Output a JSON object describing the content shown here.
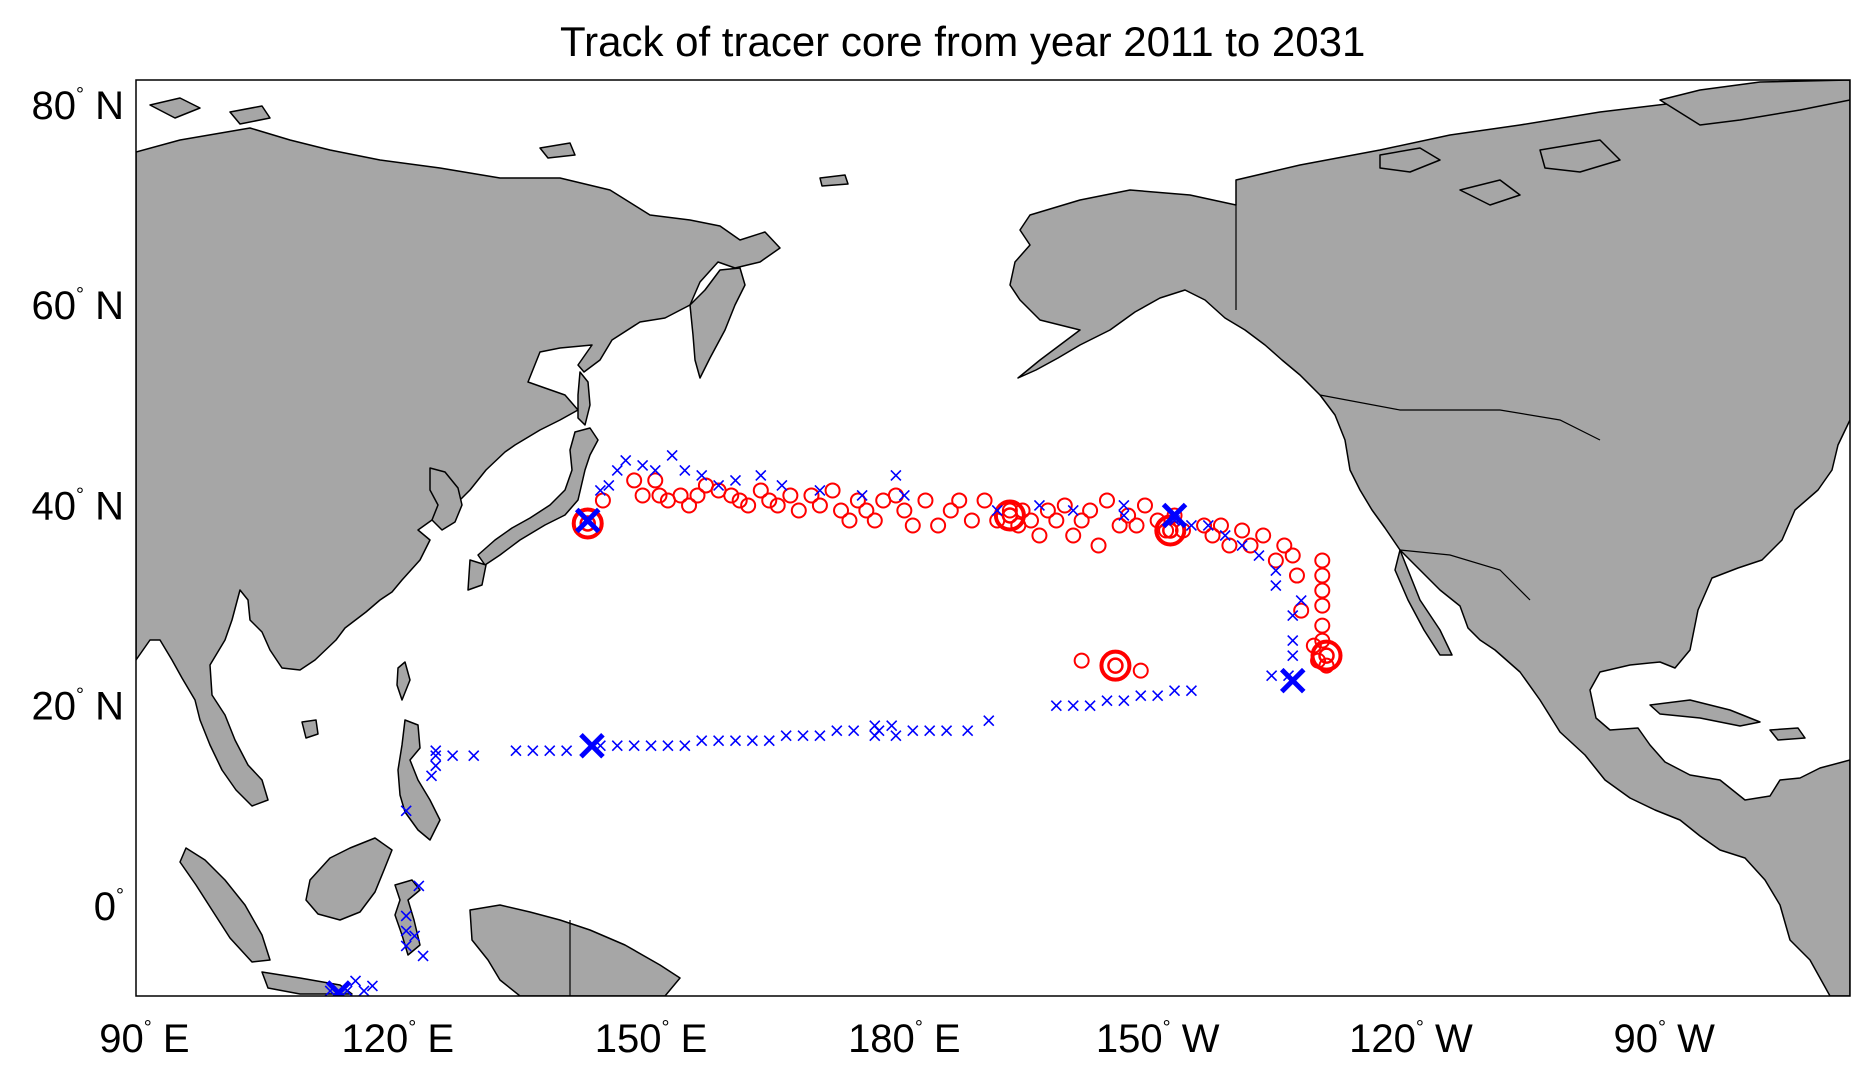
{
  "title": "Track of tracer core from  year 2011 to 2031",
  "colors": {
    "land": "#a6a6a6",
    "coast": "#000000",
    "ocean": "#ffffff",
    "circle_marker": "#ff0000",
    "cross_marker": "#0000ff"
  },
  "axes": {
    "lon_ticks": [
      {
        "lon": 90,
        "value": "90",
        "hemi": "E"
      },
      {
        "lon": 120,
        "value": "120",
        "hemi": "E"
      },
      {
        "lon": 150,
        "value": "150",
        "hemi": "E"
      },
      {
        "lon": 180,
        "value": "180",
        "hemi": "E"
      },
      {
        "lon": 210,
        "value": "150",
        "hemi": "W"
      },
      {
        "lon": 240,
        "value": "120",
        "hemi": "W"
      },
      {
        "lon": 270,
        "value": "90",
        "hemi": "W"
      }
    ],
    "lat_ticks": [
      {
        "lat": 80,
        "value": "80",
        "hemi": "N"
      },
      {
        "lat": 60,
        "value": "60",
        "hemi": "N"
      },
      {
        "lat": 40,
        "value": "40",
        "hemi": "N"
      },
      {
        "lat": 20,
        "value": "20",
        "hemi": "N"
      },
      {
        "lat": 0,
        "value": "0",
        "hemi": ""
      }
    ],
    "lon_range": [
      89,
      292
    ],
    "lat_range": [
      -9,
      82.5
    ]
  },
  "chart_data": {
    "type": "scatter",
    "title": "Track of tracer core from  year 2011 to 2031",
    "xlabel": "",
    "ylabel": "",
    "xlim": [
      89,
      292
    ],
    "ylim": [
      -9,
      82.5
    ],
    "series": [
      {
        "marker": "o",
        "color": "#ff0000",
        "points": [
          [
            144.3,
            40.5
          ],
          [
            148,
            42.5
          ],
          [
            149,
            41
          ],
          [
            150.5,
            42.5
          ],
          [
            151,
            41
          ],
          [
            152,
            40.5
          ],
          [
            153.5,
            41
          ],
          [
            154.5,
            40
          ],
          [
            155.5,
            41
          ],
          [
            156.5,
            42
          ],
          [
            158,
            41.5
          ],
          [
            159.5,
            41
          ],
          [
            160.5,
            40.5
          ],
          [
            161.5,
            40
          ],
          [
            163,
            41.5
          ],
          [
            164,
            40.5
          ],
          [
            165,
            40
          ],
          [
            166.5,
            41
          ],
          [
            167.5,
            39.5
          ],
          [
            169,
            41
          ],
          [
            170,
            40
          ],
          [
            171.5,
            41.5
          ],
          [
            172.5,
            39.5
          ],
          [
            173.5,
            38.5
          ],
          [
            174.5,
            40.5
          ],
          [
            175.5,
            39.5
          ],
          [
            176.5,
            38.5
          ],
          [
            177.5,
            40.5
          ],
          [
            179,
            41
          ],
          [
            180,
            39.5
          ],
          [
            181,
            38
          ],
          [
            182.5,
            40.5
          ],
          [
            184,
            38
          ],
          [
            185.5,
            39.5
          ],
          [
            186.5,
            40.5
          ],
          [
            188,
            38.5
          ],
          [
            189.5,
            40.5
          ],
          [
            191,
            38.5
          ],
          [
            192.5,
            39.5
          ],
          [
            193.5,
            38
          ],
          [
            194,
            39.5
          ],
          [
            195,
            38.5
          ],
          [
            196,
            37
          ],
          [
            197,
            39.5
          ],
          [
            198,
            38.5
          ],
          [
            199,
            40
          ],
          [
            200,
            37
          ],
          [
            201,
            38.5
          ],
          [
            202,
            39.5
          ],
          [
            203,
            36
          ],
          [
            204,
            40.5
          ],
          [
            205.5,
            38
          ],
          [
            206.5,
            39
          ],
          [
            207.5,
            38
          ],
          [
            208.5,
            40
          ],
          [
            210,
            38.5
          ],
          [
            211,
            37.5
          ],
          [
            212,
            39
          ],
          [
            213,
            37.5
          ],
          [
            215.5,
            38
          ],
          [
            216.5,
            37
          ],
          [
            217.5,
            38
          ],
          [
            218.5,
            36
          ],
          [
            220,
            37.5
          ],
          [
            221,
            36
          ],
          [
            222.5,
            37
          ],
          [
            224,
            34.5
          ],
          [
            225,
            36
          ],
          [
            226,
            35
          ],
          [
            226.5,
            33
          ],
          [
            227,
            29.5
          ],
          [
            229.5,
            34.5
          ],
          [
            229.5,
            33
          ],
          [
            229.5,
            31.5
          ],
          [
            229.5,
            30
          ],
          [
            229.5,
            28
          ],
          [
            229.5,
            26.5
          ],
          [
            229,
            24.5
          ],
          [
            228.5,
            26
          ],
          [
            230,
            24
          ],
          [
            201,
            24.5
          ],
          [
            205,
            24
          ],
          [
            208,
            23.5
          ]
        ],
        "big_points": [
          [
            142.5,
            38.2
          ],
          [
            192.5,
            39
          ],
          [
            211.5,
            37.5
          ],
          [
            205,
            24
          ],
          [
            230,
            25
          ]
        ]
      },
      {
        "marker": "x",
        "color": "#0000ff",
        "points": [
          [
            144,
            41.5
          ],
          [
            145,
            42
          ],
          [
            146,
            43.5
          ],
          [
            147,
            44.5
          ],
          [
            149,
            44
          ],
          [
            150.5,
            43.5
          ],
          [
            152.5,
            45
          ],
          [
            154,
            43.5
          ],
          [
            156,
            43
          ],
          [
            158,
            42
          ],
          [
            160,
            42.5
          ],
          [
            163,
            43
          ],
          [
            165.5,
            42
          ],
          [
            170,
            41.5
          ],
          [
            175,
            41
          ],
          [
            179,
            43
          ],
          [
            180,
            41
          ],
          [
            191,
            39.5
          ],
          [
            196,
            40
          ],
          [
            200,
            39.5
          ],
          [
            206,
            40
          ],
          [
            206,
            39
          ],
          [
            212,
            38.5
          ],
          [
            214,
            38
          ],
          [
            216,
            38
          ],
          [
            218,
            37
          ],
          [
            220,
            36
          ],
          [
            222,
            35
          ],
          [
            224,
            33.5
          ],
          [
            224,
            32
          ],
          [
            227,
            30.5
          ],
          [
            226,
            29
          ],
          [
            226,
            26.5
          ],
          [
            226,
            25
          ],
          [
            223.5,
            23
          ],
          [
            225.5,
            23
          ],
          [
            214,
            21.5
          ],
          [
            212,
            21.5
          ],
          [
            210,
            21
          ],
          [
            208,
            21
          ],
          [
            206,
            20.5
          ],
          [
            204,
            20.5
          ],
          [
            202,
            20
          ],
          [
            200,
            20
          ],
          [
            198,
            20
          ],
          [
            190,
            18.5
          ],
          [
            187.5,
            17.5
          ],
          [
            185,
            17.5
          ],
          [
            183,
            17.5
          ],
          [
            181,
            17.5
          ],
          [
            179,
            17
          ],
          [
            178.5,
            18
          ],
          [
            177,
            17.5
          ],
          [
            176.5,
            17
          ],
          [
            176.5,
            18
          ],
          [
            174,
            17.5
          ],
          [
            172,
            17.5
          ],
          [
            170,
            17
          ],
          [
            168,
            17
          ],
          [
            166,
            17
          ],
          [
            164,
            16.5
          ],
          [
            162,
            16.5
          ],
          [
            160,
            16.5
          ],
          [
            158,
            16.5
          ],
          [
            156,
            16.5
          ],
          [
            154,
            16
          ],
          [
            152,
            16
          ],
          [
            150,
            16
          ],
          [
            148,
            16
          ],
          [
            146,
            16
          ],
          [
            144,
            16
          ],
          [
            140,
            15.5
          ],
          [
            138,
            15.5
          ],
          [
            136,
            15.5
          ],
          [
            134,
            15.5
          ],
          [
            129,
            15
          ],
          [
            126.5,
            15
          ],
          [
            124.5,
            15
          ],
          [
            124.5,
            14
          ],
          [
            124,
            13
          ],
          [
            124.5,
            15.5
          ],
          [
            121,
            9.5
          ],
          [
            122.5,
            2
          ],
          [
            121,
            -1
          ],
          [
            121,
            -2.5
          ],
          [
            121,
            -4
          ],
          [
            122,
            -3
          ],
          [
            123,
            -5
          ],
          [
            112,
            -8.5
          ],
          [
            113,
            -8.5
          ],
          [
            114,
            -8.5
          ],
          [
            115,
            -7.5
          ],
          [
            116,
            -8.5
          ],
          [
            117,
            -8
          ]
        ],
        "big_points": [
          [
            142.5,
            38.5
          ],
          [
            143,
            16
          ],
          [
            113,
            -8.7
          ],
          [
            212,
            39
          ],
          [
            226,
            22.5
          ]
        ]
      }
    ]
  }
}
